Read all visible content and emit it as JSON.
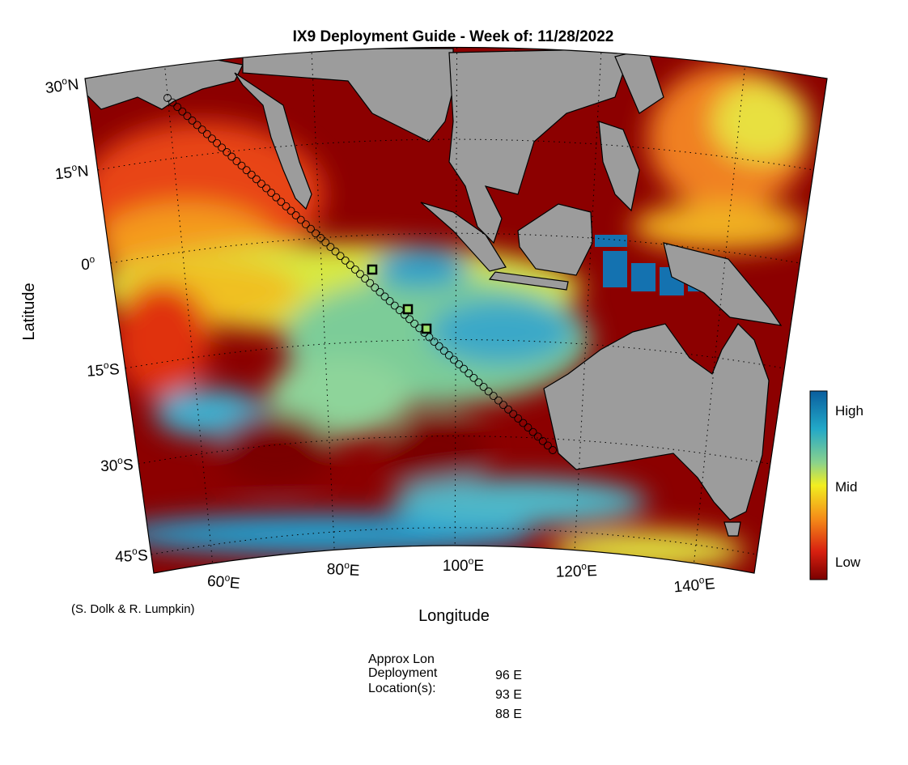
{
  "title": "IX9 Deployment Guide - Week of: 11/28/2022",
  "axes": {
    "y_label": "Latitude",
    "x_label": "Longitude"
  },
  "lat_labels": [
    {
      "num": "30",
      "sup": "o",
      "hemi": "N"
    },
    {
      "num": "15",
      "sup": "o",
      "hemi": "N"
    },
    {
      "num": "0",
      "sup": "o"
    },
    {
      "num": "15",
      "sup": "o",
      "hemi": "S"
    },
    {
      "num": "30",
      "sup": "o",
      "hemi": "S"
    },
    {
      "num": "45",
      "sup": "o",
      "hemi": "S"
    }
  ],
  "lon_labels": [
    {
      "num": "60",
      "sup": "o",
      "hemi": "E"
    },
    {
      "num": "80",
      "sup": "o",
      "hemi": "E"
    },
    {
      "num": "100",
      "sup": "o",
      "hemi": "E"
    },
    {
      "num": "120",
      "sup": "o",
      "hemi": "E"
    },
    {
      "num": "140",
      "sup": "o",
      "hemi": "E"
    }
  ],
  "colorbar": {
    "labels": [
      "High",
      "Mid",
      "Low"
    ]
  },
  "credit": "(S. Dolk & R. Lumpkin)",
  "deployment": {
    "heading": [
      "Approx Lon",
      "Deployment",
      "Location(s):"
    ],
    "locations": [
      "96 E",
      "93 E",
      "88 E"
    ]
  }
}
